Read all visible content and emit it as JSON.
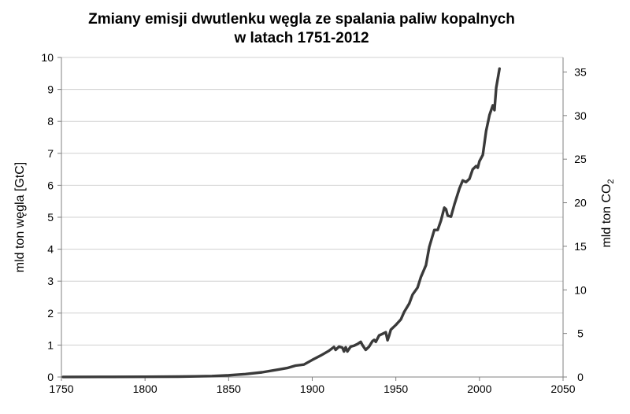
{
  "chart_data": {
    "type": "line",
    "title_lines": [
      "Zmiany emisji dwutlenku węgla ze spalania paliw kopalnych",
      "w latach 1751-2012"
    ],
    "xlabel": "",
    "ylabel": "mld ton węgla [GtC]",
    "y2label_main": "mld ton CO",
    "y2label_sub": "2",
    "xlim": [
      1750,
      2050
    ],
    "ylim": [
      0,
      10
    ],
    "y2lim": [
      0,
      36.67
    ],
    "xticks": [
      1750,
      1800,
      1850,
      1900,
      1950,
      2000,
      2050
    ],
    "yticks": [
      0,
      1,
      2,
      3,
      4,
      5,
      6,
      7,
      8,
      9,
      10
    ],
    "y2ticks": [
      0,
      5,
      10,
      15,
      20,
      25,
      30,
      35
    ],
    "grid": true,
    "series_color": "#3a3a3a",
    "x": [
      1751,
      1780,
      1800,
      1820,
      1830,
      1840,
      1850,
      1860,
      1870,
      1880,
      1885,
      1890,
      1895,
      1900,
      1905,
      1910,
      1913,
      1914,
      1916,
      1918,
      1919,
      1920,
      1921,
      1923,
      1925,
      1927,
      1929,
      1930,
      1932,
      1934,
      1936,
      1937,
      1938,
      1940,
      1942,
      1944,
      1945,
      1946,
      1947,
      1950,
      1953,
      1955,
      1958,
      1960,
      1963,
      1965,
      1968,
      1970,
      1973,
      1974,
      1975,
      1977,
      1979,
      1980,
      1981,
      1983,
      1985,
      1988,
      1990,
      1992,
      1994,
      1996,
      1998,
      1999,
      2000,
      2002,
      2004,
      2006,
      2008,
      2009,
      2010,
      2012
    ],
    "values": [
      0.003,
      0.005,
      0.008,
      0.013,
      0.02,
      0.03,
      0.054,
      0.091,
      0.147,
      0.236,
      0.28,
      0.356,
      0.39,
      0.534,
      0.67,
      0.819,
      0.94,
      0.85,
      0.95,
      0.92,
      0.8,
      0.93,
      0.8,
      0.95,
      0.98,
      1.03,
      1.1,
      1.0,
      0.85,
      0.95,
      1.12,
      1.16,
      1.1,
      1.3,
      1.35,
      1.4,
      1.15,
      1.3,
      1.48,
      1.63,
      1.8,
      2.04,
      2.3,
      2.58,
      2.8,
      3.13,
      3.5,
      4.07,
      4.6,
      4.6,
      4.6,
      4.9,
      5.3,
      5.25,
      5.05,
      5.02,
      5.4,
      5.9,
      6.15,
      6.1,
      6.2,
      6.5,
      6.6,
      6.55,
      6.75,
      6.95,
      7.7,
      8.2,
      8.5,
      8.35,
      9.05,
      9.65
    ]
  }
}
